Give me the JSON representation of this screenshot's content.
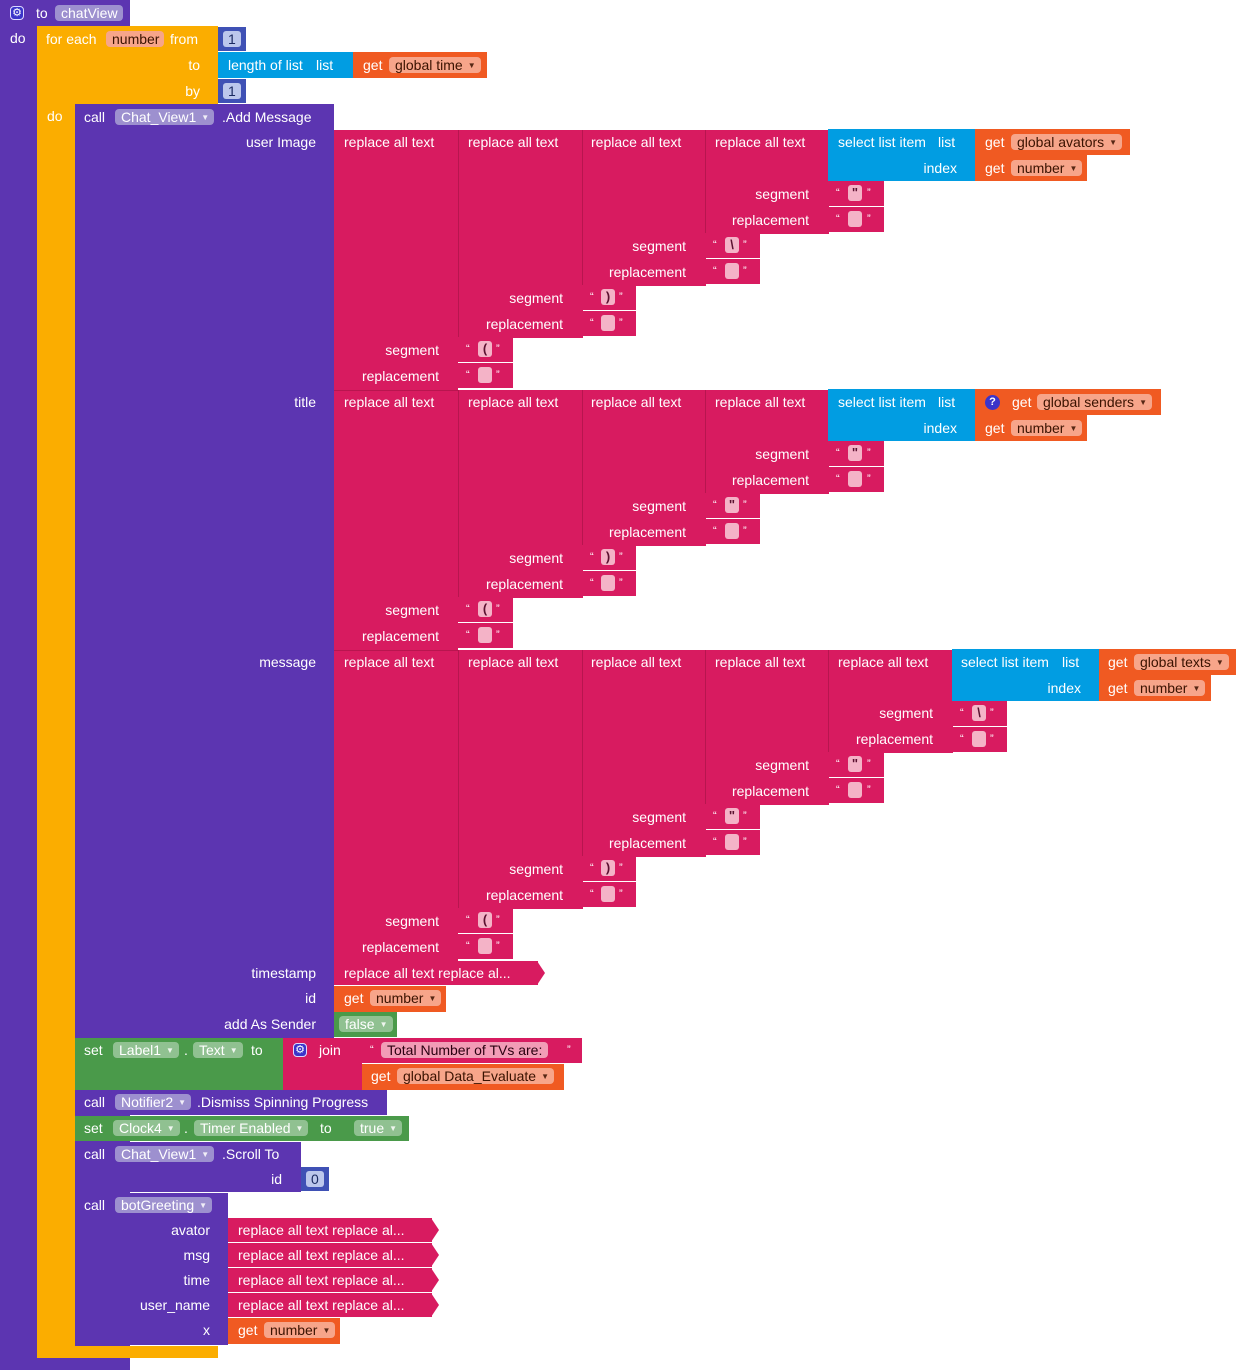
{
  "colors": {
    "procedure": "#5c35b1",
    "control": "#fbad00",
    "text": "#d81b60",
    "list": "#019de2",
    "variable": "#f05a22",
    "math": "#3f51b5",
    "logic": "#4a9a4a",
    "component": "#7e3fc2"
  },
  "procedure": {
    "keyword_to": "to",
    "name": "chatView",
    "keyword_do": "do"
  },
  "loop": {
    "keyword": "for each",
    "var": "number",
    "from_label": "from",
    "from_value": "1",
    "to_label": "to",
    "by_label": "by",
    "by_value": "1",
    "do_label": "do"
  },
  "length": {
    "label": "length of list",
    "list_label": "list"
  },
  "globals": {
    "time": "global time",
    "avators": "global avators",
    "senders": "global senders",
    "texts": "global texts",
    "data_eval": "global Data_Evaluate"
  },
  "words": {
    "get": "get",
    "call": "call",
    "set": "set",
    "to": "to",
    "dot": ".",
    "rat": "replace all text",
    "sli": "select list item",
    "list": "list",
    "index": "index",
    "segment": "segment",
    "replacement": "replacement",
    "join": "join",
    "open_q": "“",
    "close_q": "”",
    "collapsed": "replace all text replace al..."
  },
  "addmsg": {
    "component": "Chat_View1",
    "method": ".Add Message",
    "user_image": "user Image",
    "title": "title",
    "message": "message",
    "timestamp": "timestamp",
    "id": "id",
    "add_as_sender": "add As Sender",
    "false_value": "false"
  },
  "chars": {
    "quote": "\"",
    "backslash": "\\",
    "close_paren": ")",
    "open_paren": "(",
    "space": " ",
    "q_mark": "?"
  },
  "label_set": {
    "component": "Label1",
    "property": "Text",
    "text": "Total Number of TVs are: "
  },
  "notifier": {
    "component": "Notifier2",
    "method": ".Dismiss Spinning Progress"
  },
  "clock_set": {
    "component": "Clock4",
    "property": "Timer Enabled",
    "value": "true"
  },
  "scroll": {
    "component": "Chat_View1",
    "method": ".Scroll To",
    "id_label": "id",
    "id_value": "0"
  },
  "bot": {
    "name": "botGreeting",
    "avator": "avator",
    "msg": "msg",
    "time": "time",
    "user_name": "user_name",
    "x": "x"
  }
}
